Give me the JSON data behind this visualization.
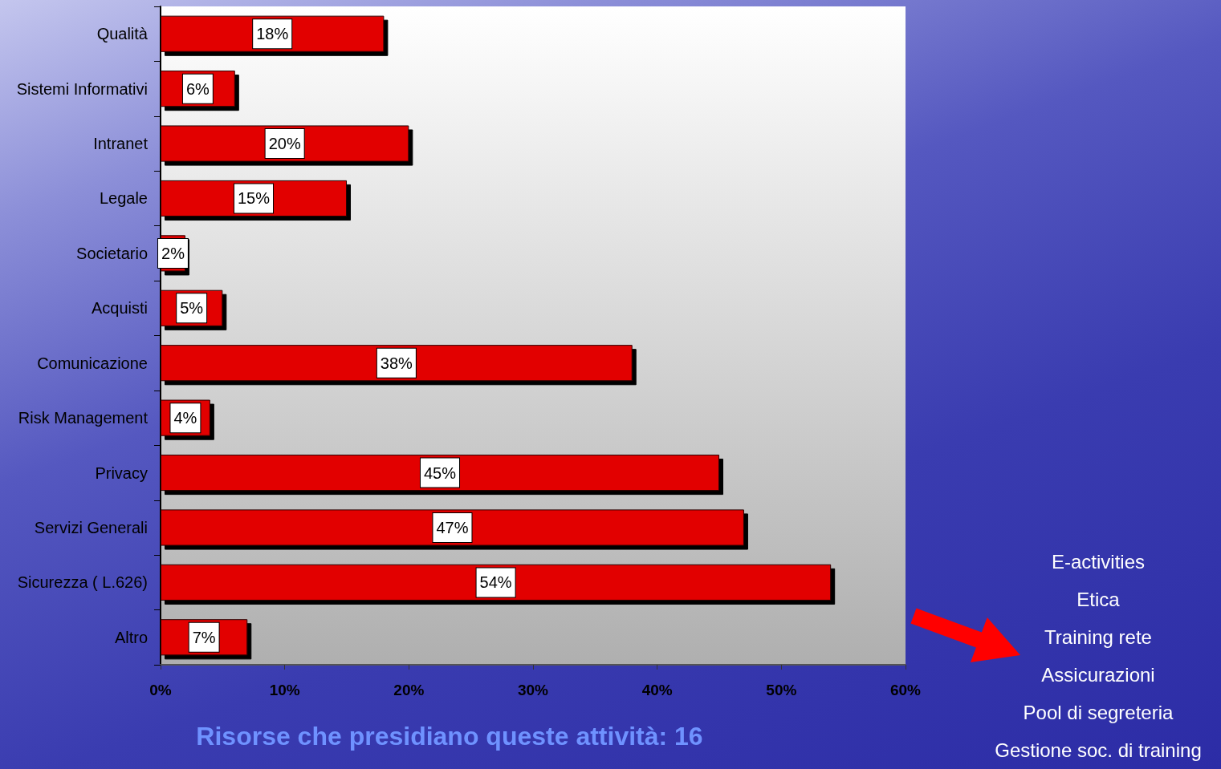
{
  "chart_data": {
    "type": "bar",
    "orientation": "horizontal",
    "categories": [
      "Qualità",
      "Sistemi Informativi",
      "Intranet",
      "Legale",
      "Societario",
      "Acquisti",
      "Comunicazione",
      "Risk Management",
      "Privacy",
      "Servizi Generali",
      "Sicurezza ( L.626)",
      "Altro"
    ],
    "values": [
      18,
      6,
      20,
      15,
      2,
      5,
      38,
      4,
      45,
      47,
      54,
      7
    ],
    "value_labels": [
      "18%",
      "6%",
      "20%",
      "15%",
      "2%",
      "5%",
      "38%",
      "4%",
      "45%",
      "47%",
      "54%",
      "7%"
    ],
    "color": "#e20000",
    "xlim": [
      0,
      60
    ],
    "xticks": [
      {
        "value": 0,
        "label": "0%"
      },
      {
        "value": 10,
        "label": "10%"
      },
      {
        "value": 20,
        "label": "20%"
      },
      {
        "value": 30,
        "label": "30%"
      },
      {
        "value": 40,
        "label": "40%"
      },
      {
        "value": 50,
        "label": "50%"
      },
      {
        "value": 60,
        "label": "60%"
      }
    ],
    "grid": false,
    "annotations": [
      "E-activities",
      "Etica",
      "Training rete",
      "Assicurazioni",
      "Pool di segreteria",
      "Gestione soc. di training",
      "Risorse che presidiano queste attività: 16"
    ]
  }
}
